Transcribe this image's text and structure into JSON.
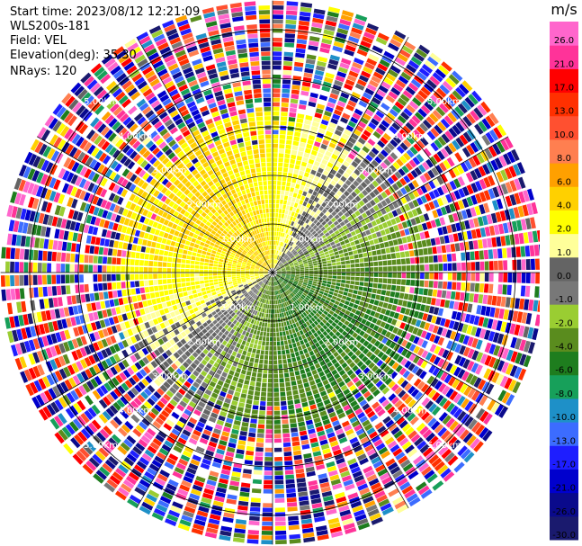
{
  "metadata": {
    "start_time": "Start time: 2023/08/12 12:21:09",
    "instrument": "WLS200s-181",
    "field": "Field: VEL",
    "elevation": "Elevation(deg): 35.30",
    "nrays": "NRays: 120"
  },
  "chart_data": {
    "type": "heatmap",
    "projection": "polar PPI",
    "field": "VEL",
    "nrays": 120,
    "range_rings": [
      {
        "value": 1.0,
        "label": "1.00km"
      },
      {
        "value": 2.0,
        "label": "2.00km"
      },
      {
        "value": 3.0,
        "label": "3.00km"
      },
      {
        "value": 4.0,
        "label": "4.00km"
      },
      {
        "value": 5.0,
        "label": "5.00km"
      }
    ],
    "max_range_km": 5.6,
    "colorbar": {
      "unit": "m/s",
      "levels": [
        -30.0,
        -26.0,
        -21.0,
        -17.0,
        -13.0,
        -10.0,
        -8.0,
        -6.0,
        -4.0,
        -2.0,
        -1.0,
        0.0,
        1.0,
        2.0,
        4.0,
        6.0,
        8.0,
        10.0,
        13.0,
        17.0,
        21.0,
        26.0
      ],
      "labels": [
        "-30.0",
        "-26.0",
        "-21.0",
        "-17.0",
        "-13.0",
        "-10.0",
        "-8.0",
        "-6.0",
        "-4.0",
        "-2.0",
        "-1.0",
        "0.0",
        "1.0",
        "2.0",
        "4.0",
        "6.0",
        "8.0",
        "10.0",
        "13.0",
        "17.0",
        "21.0",
        "26.0"
      ],
      "colors": [
        "#1a1a6e",
        "#0a0a8c",
        "#0000cd",
        "#1e1eff",
        "#3c6cff",
        "#1e90c8",
        "#17a05a",
        "#1e7d1e",
        "#5a8c1e",
        "#9acd32",
        "#787878",
        "#646464",
        "#ffff9a",
        "#ffff00",
        "#ffd000",
        "#ffa000",
        "#ff7f50",
        "#ff5030",
        "#ff3000",
        "#ff0000",
        "#ff3399",
        "#ff66cc"
      ]
    },
    "pattern": {
      "clear_air_range_km": 3.3,
      "receding_sector": "north-west (yellow/orange, +2 to +6 m/s)",
      "approaching_sector": "south-east (green, -2 to -6 m/s)",
      "zero_band": "grey, oriented south-west to north-east",
      "outer_noise": "random colors beyond ~3.3 km"
    }
  }
}
